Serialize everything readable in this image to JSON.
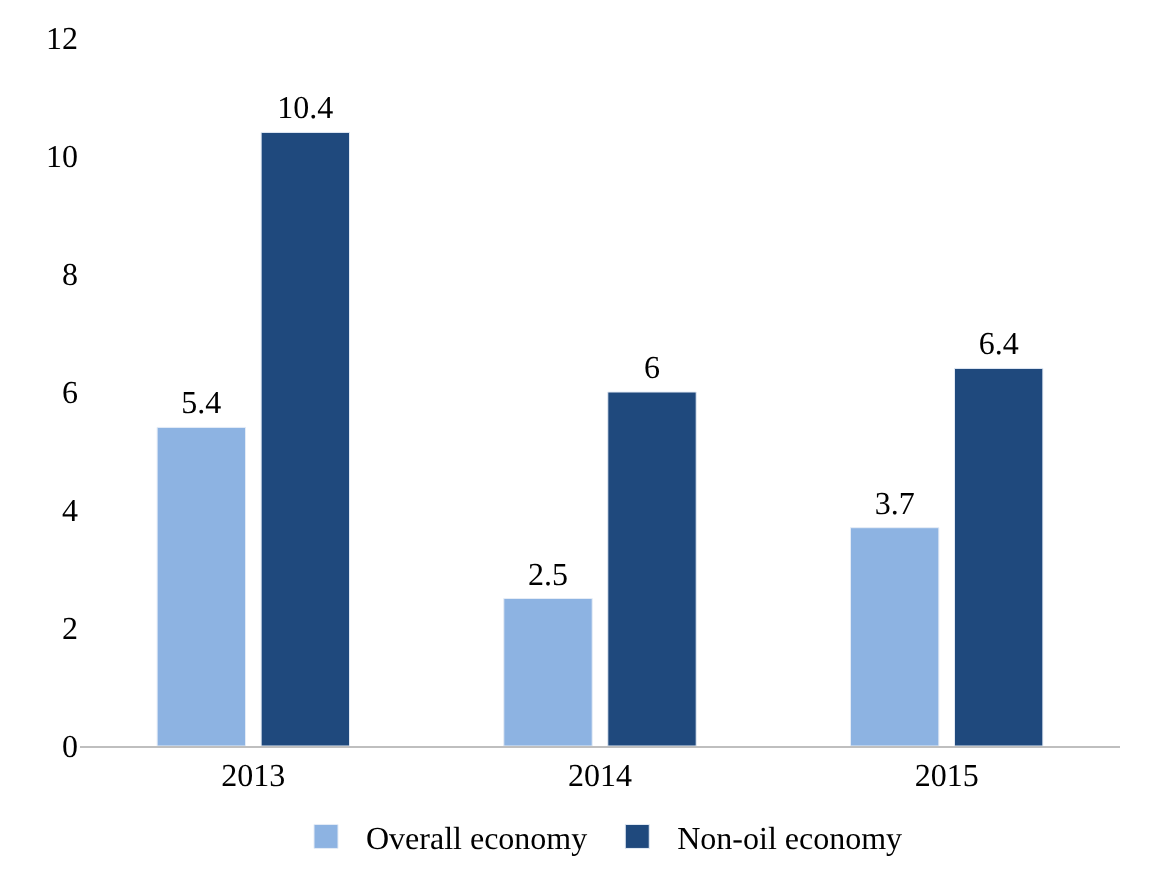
{
  "chart_data": {
    "type": "bar",
    "categories": [
      "2013",
      "2014",
      "2015"
    ],
    "series": [
      {
        "name": "Overall economy",
        "color": "#8db3e2",
        "values": [
          5.4,
          2.5,
          3.7
        ]
      },
      {
        "name": "Non-oil economy",
        "color": "#1f497d",
        "values": [
          10.4,
          6,
          6.4
        ]
      }
    ],
    "ylim": [
      0,
      12
    ],
    "yticks": [
      0,
      2,
      4,
      6,
      8,
      10,
      12
    ],
    "legend": "bottom",
    "data_labels": true
  }
}
